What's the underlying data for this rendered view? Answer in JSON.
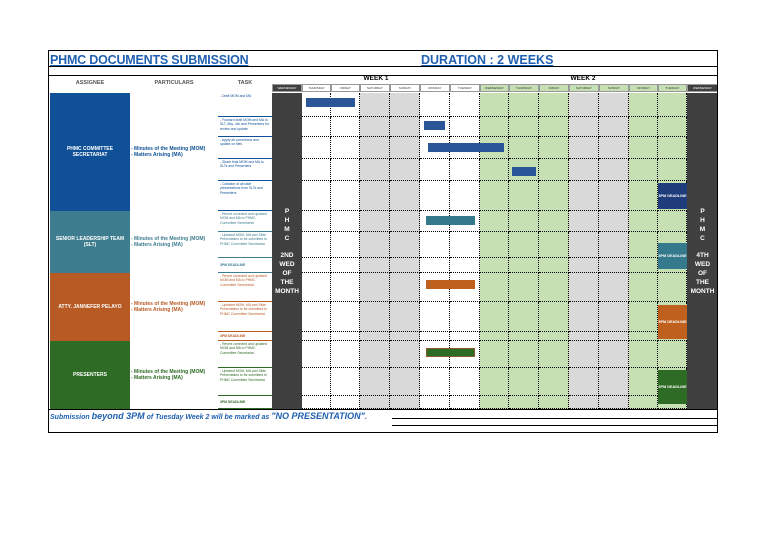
{
  "header": {
    "title": "PHMC DOCUMENTS SUBMISSION",
    "duration": "DURATION : 2 WEEKS"
  },
  "columns": {
    "assignee": "ASSIGNEE",
    "particulars": "PARTICULARS",
    "task": "TASK"
  },
  "weeks": [
    "WEEK 1",
    "WEEK 2"
  ],
  "days": [
    "WEDNESDAY",
    "THURSDAY",
    "FRIDAY",
    "SATURDAY",
    "SUNDAY",
    "MONDAY",
    "TUESDAY",
    "WEDNESDAY",
    "THURSDAY",
    "FRIDAY",
    "SATURDAY",
    "SUNDAY",
    "MONDAY",
    "TUESDAY",
    "WEDNESDAY"
  ],
  "phmc_week1": [
    "P",
    "H",
    "M",
    "C",
    "2ND",
    "WED",
    "OF",
    "THE",
    "MONTH"
  ],
  "phmc_week2": [
    "P",
    "H",
    "M",
    "C",
    "4TH",
    "WED",
    "OF",
    "THE",
    "MONTH"
  ],
  "groups": [
    {
      "assignee": "PHMC COMMITTEE SECRETARIAT",
      "particulars": [
        "- Minutes of the Meeting (MOM)",
        "- Matters Arising (MA)"
      ],
      "color": "#0f5096",
      "tasks": [
        "- Draft MOM and MA",
        "- Forward draft MOM and MA to SLT, Atty. Jan and Presenters for review and update",
        "- Apply all corrections and update on files",
        "- Share final MOM and MA to SLTs and Presenters",
        "- Collation of all slide presentations from SLTs and Presenters"
      ]
    },
    {
      "assignee": "SENIOR LEADERSHIP TEAM (SLT)",
      "particulars": [
        "- Minutes of the Meeting (MOM)",
        "- Matters Arising (MA)"
      ],
      "color": "#3d7d8f",
      "tasks": [
        "- Revert corrected and updated MOM and MA to PHMC Committee Secretariat",
        "- Updated MOM, MA and Slide Presentation to be submitted to PHMC Committee Secretariat",
        "3PM DEADLINE"
      ]
    },
    {
      "assignee": "ATTY. JANNEFER PELAYO",
      "particulars": [
        "- Minutes of the Meeting (MOM)",
        "- Matters Arising (MA)"
      ],
      "color": "#b85a23",
      "tasks": [
        "- Revert corrected and updated MOM and MA to PHMC Committee Secretariat",
        "- Updated MOM, MA and Slide Presentation to be submitted to PHMC Committee Secretariat",
        "3PM DEADLINE"
      ]
    },
    {
      "assignee": "PRESENTERS",
      "particulars": [
        "- Minutes of the Meeting (MOM)",
        "- Matters Arising (MA)"
      ],
      "color": "#2e6b24",
      "tasks": [
        "- Revert corrected and updated MOM and MA to PHMC Committee Secretariat",
        "- Updated MOM, MA and Slide Presentation to be submitted to PHMC Committee Secretariat",
        "3PM DEADLINE"
      ]
    }
  ],
  "deadline_label": "3PM DEADLINE",
  "footer": {
    "part1": "Submission ",
    "part2": "beyond 3PM",
    "part3": " of Tuesday Week 2 will be marked as ",
    "part4": "\"NO PRESENTATION\"",
    "part5": "."
  },
  "colors": {
    "title": "#2060b0",
    "week1_weekday": "#ffffff",
    "week1_weekend": "#d9d9d9",
    "week2_weekday": "#c6e0b4",
    "week2_weekend": "#d9d9d9",
    "phmc_column": "#404040"
  }
}
